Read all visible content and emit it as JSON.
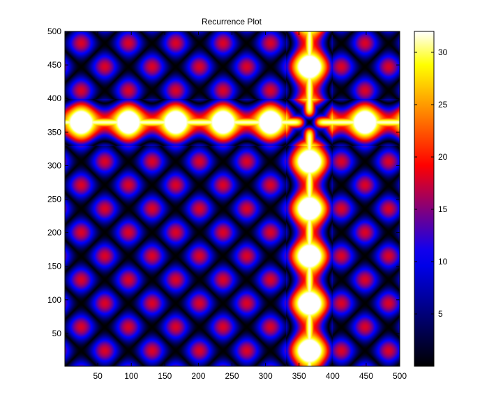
{
  "chart_data": {
    "type": "heatmap",
    "title": "Recurrence Plot",
    "xlabel": "",
    "ylabel": "",
    "xlim": [
      1,
      500
    ],
    "ylim": [
      1,
      500
    ],
    "x_ticks": [
      50,
      100,
      150,
      200,
      250,
      300,
      350,
      400,
      450,
      500
    ],
    "y_ticks": [
      50,
      100,
      150,
      200,
      250,
      300,
      350,
      400,
      450,
      500
    ],
    "colorbar": {
      "colormap": "hot",
      "clim": [
        0,
        32
      ],
      "ticks": [
        5,
        10,
        15,
        20,
        25,
        30
      ]
    },
    "grid": false,
    "grid_size": 500,
    "features": {
      "period": 70.5,
      "phase": 60,
      "special_band_center": 365,
      "special_band_span": [
        330,
        400
      ],
      "max_value": 32
    },
    "colors": {
      "low": "#000000",
      "mid_low": "#0000ff",
      "mid": "#ff0000",
      "high": "#ffff00",
      "peak": "#ffffff"
    }
  }
}
